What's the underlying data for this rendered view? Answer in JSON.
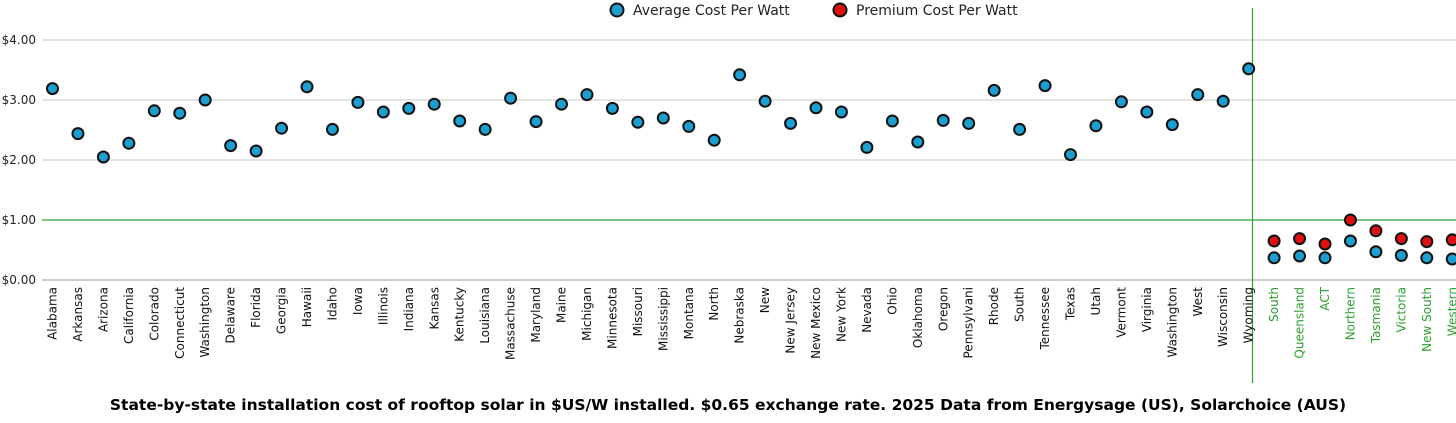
{
  "caption": "State-by-state installation cost of rooftop solar in $US/W installed.  $0.65 exchange rate.  2025 Data from Energysage (US), Solarchoice (AUS)",
  "chart_data": {
    "type": "scatter",
    "title": "",
    "xlabel": "",
    "ylabel": "",
    "ylim": [
      0,
      4.3
    ],
    "yticks": [
      "$0.00",
      "$1.00",
      "$2.00",
      "$3.00",
      "$4.00"
    ],
    "ytick_values": [
      0,
      1,
      2,
      3,
      4
    ],
    "grid": true,
    "legend": "top-center",
    "colors": {
      "average": "#1a9fd0",
      "premium": "#e01010",
      "reference": "#2ca02c",
      "grid": "#c8c8c8",
      "aus_label": "#2ca02c"
    },
    "reference_line": 1.0,
    "categories": [
      "Alabama",
      "Arkansas",
      "Arizona",
      "California",
      "Colorado",
      "Connecticut",
      "Washington",
      "Delaware",
      "Florida",
      "Georgia",
      "Hawaii",
      "Idaho",
      "Iowa",
      "Illinois",
      "Indiana",
      "Kansas",
      "Kentucky",
      "Louisiana",
      "Massachuse",
      "Maryland",
      "Maine",
      "Michigan",
      "Minnesota",
      "Missouri",
      "Mississippi",
      "Montana",
      "North",
      "Nebraska",
      "New",
      "New Jersey",
      "New Mexico",
      "New York",
      "Nevada",
      "Ohio",
      "Oklahoma",
      "Oregon",
      "Pennsylvani",
      "Rhode",
      "South",
      "Tennessee",
      "Texas",
      "Utah",
      "Vermont",
      "Virginia",
      "Washington",
      "West",
      "Wisconsin",
      "Wyoming",
      "South",
      "Queensland",
      "ACT",
      "Northern",
      "Tasmania",
      "Victoria",
      "New South",
      "Western"
    ],
    "aus_start_index": 48,
    "series": [
      {
        "name": "Average Cost Per Watt",
        "values": [
          3.19,
          2.44,
          2.05,
          2.28,
          2.82,
          2.78,
          3.0,
          2.24,
          2.15,
          2.53,
          3.22,
          2.51,
          2.96,
          2.8,
          2.86,
          2.93,
          2.65,
          2.51,
          3.03,
          2.64,
          2.93,
          3.09,
          2.86,
          2.63,
          2.7,
          2.56,
          2.33,
          3.42,
          2.98,
          2.61,
          2.87,
          2.8,
          2.21,
          2.65,
          2.3,
          2.66,
          2.61,
          3.16,
          2.51,
          3.24,
          2.09,
          2.57,
          2.97,
          2.8,
          2.59,
          3.09,
          2.98,
          3.52,
          0.37,
          0.4,
          0.37,
          0.65,
          0.47,
          0.41,
          0.37,
          0.35
        ]
      },
      {
        "name": "Premium Cost Per Watt",
        "values": [
          null,
          null,
          null,
          null,
          null,
          null,
          null,
          null,
          null,
          null,
          null,
          null,
          null,
          null,
          null,
          null,
          null,
          null,
          null,
          null,
          null,
          null,
          null,
          null,
          null,
          null,
          null,
          null,
          null,
          null,
          null,
          null,
          null,
          null,
          null,
          null,
          null,
          null,
          null,
          null,
          null,
          null,
          null,
          null,
          null,
          null,
          null,
          null,
          0.65,
          0.69,
          0.6,
          1.0,
          0.82,
          0.69,
          0.64,
          0.67
        ]
      }
    ]
  }
}
